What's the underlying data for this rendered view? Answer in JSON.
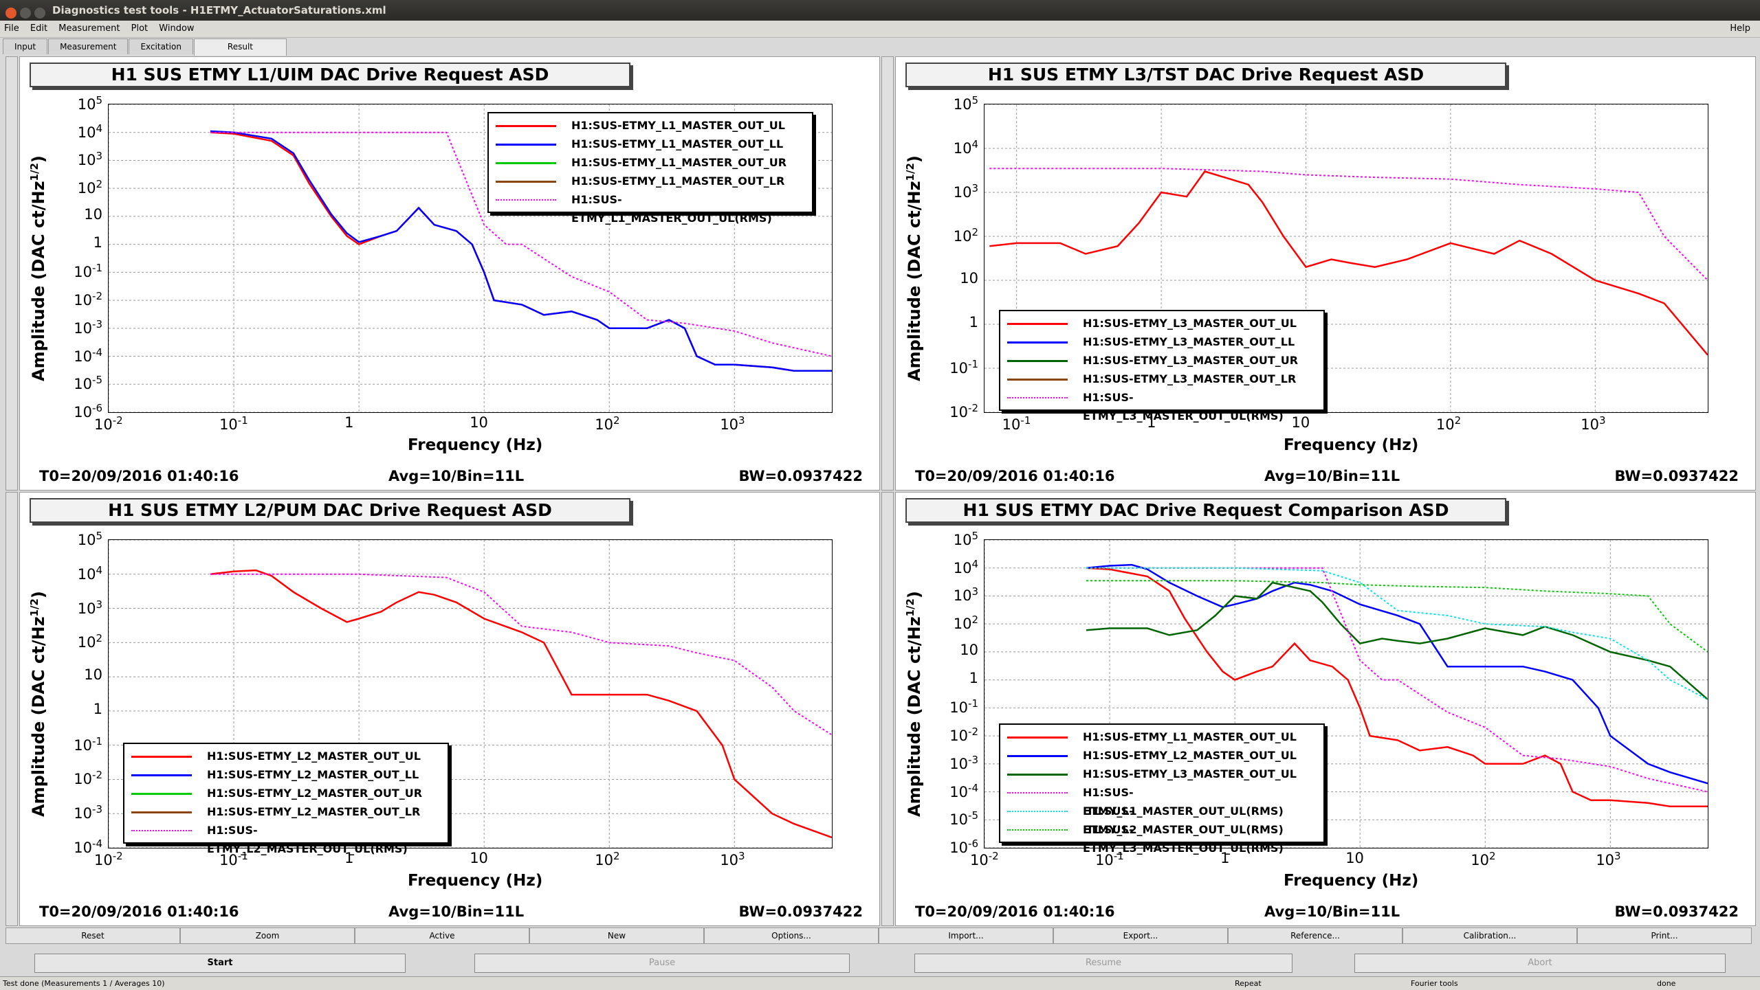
{
  "window": {
    "title": "Diagnostics test tools - H1ETMY_ActuatorSaturations.xml"
  },
  "menu": {
    "items": [
      "File",
      "Edit",
      "Measurement",
      "Plot",
      "Window"
    ],
    "help": "Help"
  },
  "tabs": [
    "Input",
    "Measurement",
    "Excitation",
    "Result"
  ],
  "active_tab": "Result",
  "panels": [
    {
      "title": "H1 SUS ETMY L1/UIM DAC Drive Request ASD",
      "t0": "T0=20/09/2016 01:40:16",
      "avg": "Avg=10/Bin=11L",
      "bw": "BW=0.0937422",
      "xlabel": "Frequency (Hz)",
      "ylabel": "Amplitude (DAC ct/Hz^1/2)",
      "legend": [
        "H1:SUS-ETMY_L1_MASTER_OUT_UL",
        "H1:SUS-ETMY_L1_MASTER_OUT_LL",
        "H1:SUS-ETMY_L1_MASTER_OUT_UR",
        "H1:SUS-ETMY_L1_MASTER_OUT_LR",
        "H1:SUS-ETMY_L1_MASTER_OUT_UL(RMS)"
      ]
    },
    {
      "title": "H1 SUS ETMY L3/TST DAC Drive Request ASD",
      "t0": "T0=20/09/2016 01:40:16",
      "avg": "Avg=10/Bin=11L",
      "bw": "BW=0.0937422",
      "xlabel": "Frequency (Hz)",
      "ylabel": "Amplitude (DAC ct/Hz^1/2)",
      "legend": [
        "H1:SUS-ETMY_L3_MASTER_OUT_UL",
        "H1:SUS-ETMY_L3_MASTER_OUT_LL",
        "H1:SUS-ETMY_L3_MASTER_OUT_UR",
        "H1:SUS-ETMY_L3_MASTER_OUT_LR",
        "H1:SUS-ETMY_L3_MASTER_OUT_UL(RMS)"
      ]
    },
    {
      "title": "H1 SUS ETMY L2/PUM DAC Drive Request ASD",
      "t0": "T0=20/09/2016 01:40:16",
      "avg": "Avg=10/Bin=11L",
      "bw": "BW=0.0937422",
      "xlabel": "Frequency (Hz)",
      "ylabel": "Amplitude (DAC ct/Hz^1/2)",
      "legend": [
        "H1:SUS-ETMY_L2_MASTER_OUT_UL",
        "H1:SUS-ETMY_L2_MASTER_OUT_LL",
        "H1:SUS-ETMY_L2_MASTER_OUT_UR",
        "H1:SUS-ETMY_L2_MASTER_OUT_LR",
        "H1:SUS-ETMY_L2_MASTER_OUT_UL(RMS)"
      ]
    },
    {
      "title": "H1 SUS ETMY  DAC Drive Request Comparison ASD",
      "t0": "T0=20/09/2016 01:40:16",
      "avg": "Avg=10/Bin=11L",
      "bw": "BW=0.0937422",
      "xlabel": "Frequency (Hz)",
      "ylabel": "Amplitude (DAC ct/Hz^1/2)",
      "legend": [
        "H1:SUS-ETMY_L1_MASTER_OUT_UL",
        "H1:SUS-ETMY_L2_MASTER_OUT_UL",
        "H1:SUS-ETMY_L3_MASTER_OUT_UL",
        "H1:SUS-ETMY_L1_MASTER_OUT_UL(RMS)",
        "H1:SUS-ETMY_L2_MASTER_OUT_UL(RMS)",
        "H1:SUS-ETMY_L3_MASTER_OUT_UL(RMS)"
      ]
    }
  ],
  "colors": {
    "red": "#ff0000",
    "blue": "#0000ff",
    "green": "#00cc00",
    "brown": "#8b4513",
    "magenta": "#ff00ff",
    "darkgreen": "#006400",
    "cyan": "#00e5e5"
  },
  "plot_buttons": [
    "Reset",
    "Zoom",
    "Active",
    "New",
    "Options...",
    "Import...",
    "Export...",
    "Reference...",
    "Calibration...",
    "Print..."
  ],
  "control_buttons": [
    "Start",
    "Pause",
    "Resume",
    "Abort"
  ],
  "status": {
    "left": "Test done (Measurements 1 / Averages 10)",
    "repeat": "Repeat",
    "fourier": "Fourier tools",
    "right": "done"
  },
  "chart_data": [
    {
      "type": "line",
      "title": "H1 SUS ETMY L1/UIM DAC Drive Request ASD",
      "xscale": "log",
      "yscale": "log",
      "xlim": [
        0.01,
        6000
      ],
      "ylim": [
        1e-06,
        100000.0
      ],
      "xticks": [
        "10^-2",
        "10^-1",
        "1",
        "10",
        "10^2",
        "10^3"
      ],
      "yticks": [
        "10^-6",
        "10^-5",
        "10^-4",
        "10^-3",
        "10^-2",
        "10^-1",
        "1",
        "10",
        "10^2",
        "10^3",
        "10^4",
        "10^5"
      ],
      "series": [
        {
          "name": "H1:SUS-ETMY_L1_MASTER_OUT_UL",
          "color": "#ff0000",
          "x": [
            0.065,
            0.1,
            0.2,
            0.3,
            0.4,
            0.6,
            0.8,
            1,
            1.5,
            2,
            3,
            4,
            6,
            8,
            10,
            12,
            20,
            30,
            50,
            80,
            100,
            200,
            300,
            400,
            500,
            700,
            1000,
            2000,
            3000,
            6000
          ],
          "y": [
            10000,
            9000,
            5000,
            1500,
            150,
            10,
            2,
            1,
            2,
            3,
            20,
            5,
            3,
            1,
            0.1,
            0.01,
            0.007,
            0.003,
            0.004,
            0.002,
            0.001,
            0.001,
            0.002,
            0.001,
            0.0001,
            5e-05,
            5e-05,
            4e-05,
            3e-05,
            3e-05
          ]
        },
        {
          "name": "H1:SUS-ETMY_L1_MASTER_OUT_LL",
          "color": "#0000ff",
          "x": [
            0.065,
            0.1,
            0.2,
            0.3,
            0.4,
            0.6,
            0.8,
            1,
            1.5,
            2,
            3,
            4,
            6,
            8,
            10,
            12,
            20,
            30,
            50,
            80,
            100,
            200,
            300,
            400,
            500,
            700,
            1000,
            2000,
            3000,
            6000
          ],
          "y": [
            11000,
            10000,
            6000,
            1800,
            200,
            12,
            2.5,
            1.2,
            2,
            3,
            20,
            5,
            3,
            1,
            0.1,
            0.01,
            0.007,
            0.003,
            0.004,
            0.002,
            0.001,
            0.001,
            0.002,
            0.001,
            0.0001,
            5e-05,
            5e-05,
            4e-05,
            3e-05,
            3e-05
          ]
        },
        {
          "name": "H1:SUS-ETMY_L1_MASTER_OUT_UL(RMS)",
          "color": "#ff00ff",
          "x": [
            0.065,
            1,
            5,
            10,
            15,
            20,
            50,
            100,
            200,
            400,
            1000,
            2000,
            6000
          ],
          "y": [
            10000,
            10000,
            10000,
            5,
            1,
            1,
            0.07,
            0.02,
            0.002,
            0.0015,
            0.0008,
            0.0003,
            0.0001
          ]
        }
      ]
    },
    {
      "type": "line",
      "title": "H1 SUS ETMY L3/TST DAC Drive Request ASD",
      "xscale": "log",
      "yscale": "log",
      "xlim": [
        0.06,
        6000
      ],
      "ylim": [
        0.01,
        100000.0
      ],
      "xticks": [
        "10^-1",
        "1",
        "10",
        "10^2",
        "10^3"
      ],
      "yticks": [
        "10^-2",
        "10^-1",
        "1",
        "10",
        "10^2",
        "10^3",
        "10^4",
        "10^5"
      ],
      "series": [
        {
          "name": "H1:SUS-ETMY_L3_MASTER_OUT_UL",
          "color": "#ff0000",
          "x": [
            0.065,
            0.1,
            0.2,
            0.3,
            0.5,
            0.7,
            1,
            1.5,
            2,
            3,
            4,
            5,
            7,
            10,
            15,
            20,
            30,
            50,
            100,
            200,
            300,
            500,
            1000,
            2000,
            3000,
            6000
          ],
          "y": [
            60,
            70,
            70,
            40,
            60,
            200,
            1000,
            800,
            3000,
            2000,
            1500,
            600,
            100,
            20,
            30,
            25,
            20,
            30,
            70,
            40,
            80,
            40,
            10,
            5,
            3,
            0.2
          ]
        },
        {
          "name": "H1:SUS-ETMY_L3_MASTER_OUT_UL(RMS)",
          "color": "#ff00ff",
          "x": [
            0.065,
            1,
            5,
            10,
            30,
            100,
            300,
            1000,
            2000,
            3000,
            6000
          ],
          "y": [
            3500,
            3500,
            3000,
            2500,
            2200,
            2000,
            1500,
            1200,
            1000,
            100,
            10
          ]
        }
      ]
    },
    {
      "type": "line",
      "title": "H1 SUS ETMY L2/PUM DAC Drive Request ASD",
      "xscale": "log",
      "yscale": "log",
      "xlim": [
        0.01,
        6000
      ],
      "ylim": [
        0.0001,
        100000.0
      ],
      "xticks": [
        "10^-2",
        "10^-1",
        "1",
        "10",
        "10^2",
        "10^3"
      ],
      "yticks": [
        "10^-4",
        "10^-3",
        "10^-2",
        "10^-1",
        "1",
        "10",
        "10^2",
        "10^3",
        "10^4",
        "10^5"
      ],
      "series": [
        {
          "name": "H1:SUS-ETMY_L2_MASTER_OUT_UL",
          "color": "#ff0000",
          "x": [
            0.065,
            0.1,
            0.15,
            0.2,
            0.3,
            0.5,
            0.8,
            1,
            1.5,
            2,
            3,
            4,
            6,
            10,
            20,
            30,
            50,
            80,
            100,
            200,
            300,
            500,
            800,
            1000,
            2000,
            3000,
            6000
          ],
          "y": [
            10000,
            12000,
            13000,
            9000,
            3000,
            1000,
            400,
            500,
            800,
            1500,
            3000,
            2500,
            1500,
            500,
            200,
            100,
            3,
            3,
            3,
            3,
            2,
            1,
            0.1,
            0.01,
            0.001,
            0.0005,
            0.0002
          ]
        },
        {
          "name": "H1:SUS-ETMY_L2_MASTER_OUT_UL(RMS)",
          "color": "#ff00ff",
          "x": [
            0.065,
            1,
            5,
            10,
            20,
            50,
            100,
            300,
            500,
            1000,
            2000,
            3000,
            6000
          ],
          "y": [
            10000,
            10000,
            8000,
            3000,
            300,
            200,
            100,
            80,
            50,
            30,
            5,
            1,
            0.2
          ]
        }
      ]
    },
    {
      "type": "line",
      "title": "H1 SUS ETMY  DAC Drive Request Comparison ASD",
      "xscale": "log",
      "yscale": "log",
      "xlim": [
        0.01,
        6000
      ],
      "ylim": [
        1e-06,
        100000.0
      ],
      "xticks": [
        "10^-2",
        "10^-1",
        "1",
        "10",
        "10^2",
        "10^3"
      ],
      "yticks": [
        "10^-6",
        "10^-5",
        "10^-4",
        "10^-3",
        "10^-2",
        "10^-1",
        "1",
        "10",
        "10^2",
        "10^3",
        "10^4",
        "10^5"
      ],
      "series": [
        {
          "name": "H1:SUS-ETMY_L1_MASTER_OUT_UL",
          "color": "#ff0000",
          "x": [
            0.065,
            0.1,
            0.2,
            0.3,
            0.4,
            0.6,
            0.8,
            1,
            1.5,
            2,
            3,
            4,
            6,
            8,
            10,
            12,
            20,
            30,
            50,
            80,
            100,
            200,
            300,
            400,
            500,
            700,
            1000,
            2000,
            3000,
            6000
          ],
          "y": [
            10000,
            9000,
            5000,
            1500,
            150,
            10,
            2,
            1,
            2,
            3,
            20,
            5,
            3,
            1,
            0.1,
            0.01,
            0.007,
            0.003,
            0.004,
            0.002,
            0.001,
            0.001,
            0.002,
            0.001,
            0.0001,
            5e-05,
            5e-05,
            4e-05,
            3e-05,
            3e-05
          ]
        },
        {
          "name": "H1:SUS-ETMY_L2_MASTER_OUT_UL",
          "color": "#0000ff",
          "x": [
            0.065,
            0.1,
            0.15,
            0.2,
            0.3,
            0.5,
            0.8,
            1,
            1.5,
            2,
            3,
            4,
            6,
            10,
            20,
            30,
            50,
            80,
            100,
            200,
            300,
            500,
            800,
            1000,
            2000,
            3000,
            6000
          ],
          "y": [
            10000,
            12000,
            13000,
            9000,
            3000,
            1000,
            400,
            500,
            800,
            1500,
            3000,
            2500,
            1500,
            500,
            200,
            100,
            3,
            3,
            3,
            3,
            2,
            1,
            0.1,
            0.01,
            0.001,
            0.0005,
            0.0002
          ]
        },
        {
          "name": "H1:SUS-ETMY_L3_MASTER_OUT_UL",
          "color": "#006400",
          "x": [
            0.065,
            0.1,
            0.2,
            0.3,
            0.5,
            0.7,
            1,
            1.5,
            2,
            3,
            4,
            5,
            7,
            10,
            15,
            20,
            30,
            50,
            100,
            200,
            300,
            500,
            1000,
            2000,
            3000,
            6000
          ],
          "y": [
            60,
            70,
            70,
            40,
            60,
            200,
            1000,
            800,
            3000,
            2000,
            1500,
            600,
            100,
            20,
            30,
            25,
            20,
            30,
            70,
            40,
            80,
            40,
            10,
            5,
            3,
            0.2
          ]
        },
        {
          "name": "H1:SUS-ETMY_L1_MASTER_OUT_UL(RMS)",
          "color": "#ff00ff",
          "x": [
            0.065,
            1,
            5,
            10,
            15,
            20,
            50,
            100,
            200,
            400,
            1000,
            2000,
            6000
          ],
          "y": [
            10000,
            10000,
            10000,
            5,
            1,
            1,
            0.07,
            0.02,
            0.002,
            0.0015,
            0.0008,
            0.0003,
            0.0001
          ]
        },
        {
          "name": "H1:SUS-ETMY_L2_MASTER_OUT_UL(RMS)",
          "color": "#00e5e5",
          "x": [
            0.065,
            1,
            5,
            10,
            20,
            50,
            100,
            300,
            500,
            1000,
            2000,
            3000,
            6000
          ],
          "y": [
            10000,
            10000,
            8000,
            3000,
            300,
            200,
            100,
            80,
            50,
            30,
            5,
            1,
            0.2
          ]
        },
        {
          "name": "H1:SUS-ETMY_L3_MASTER_OUT_UL(RMS)",
          "color": "#00cc00",
          "x": [
            0.065,
            1,
            5,
            10,
            30,
            100,
            300,
            1000,
            2000,
            3000,
            6000
          ],
          "y": [
            3500,
            3500,
            3000,
            2500,
            2200,
            2000,
            1500,
            1200,
            1000,
            100,
            10
          ]
        }
      ]
    }
  ]
}
